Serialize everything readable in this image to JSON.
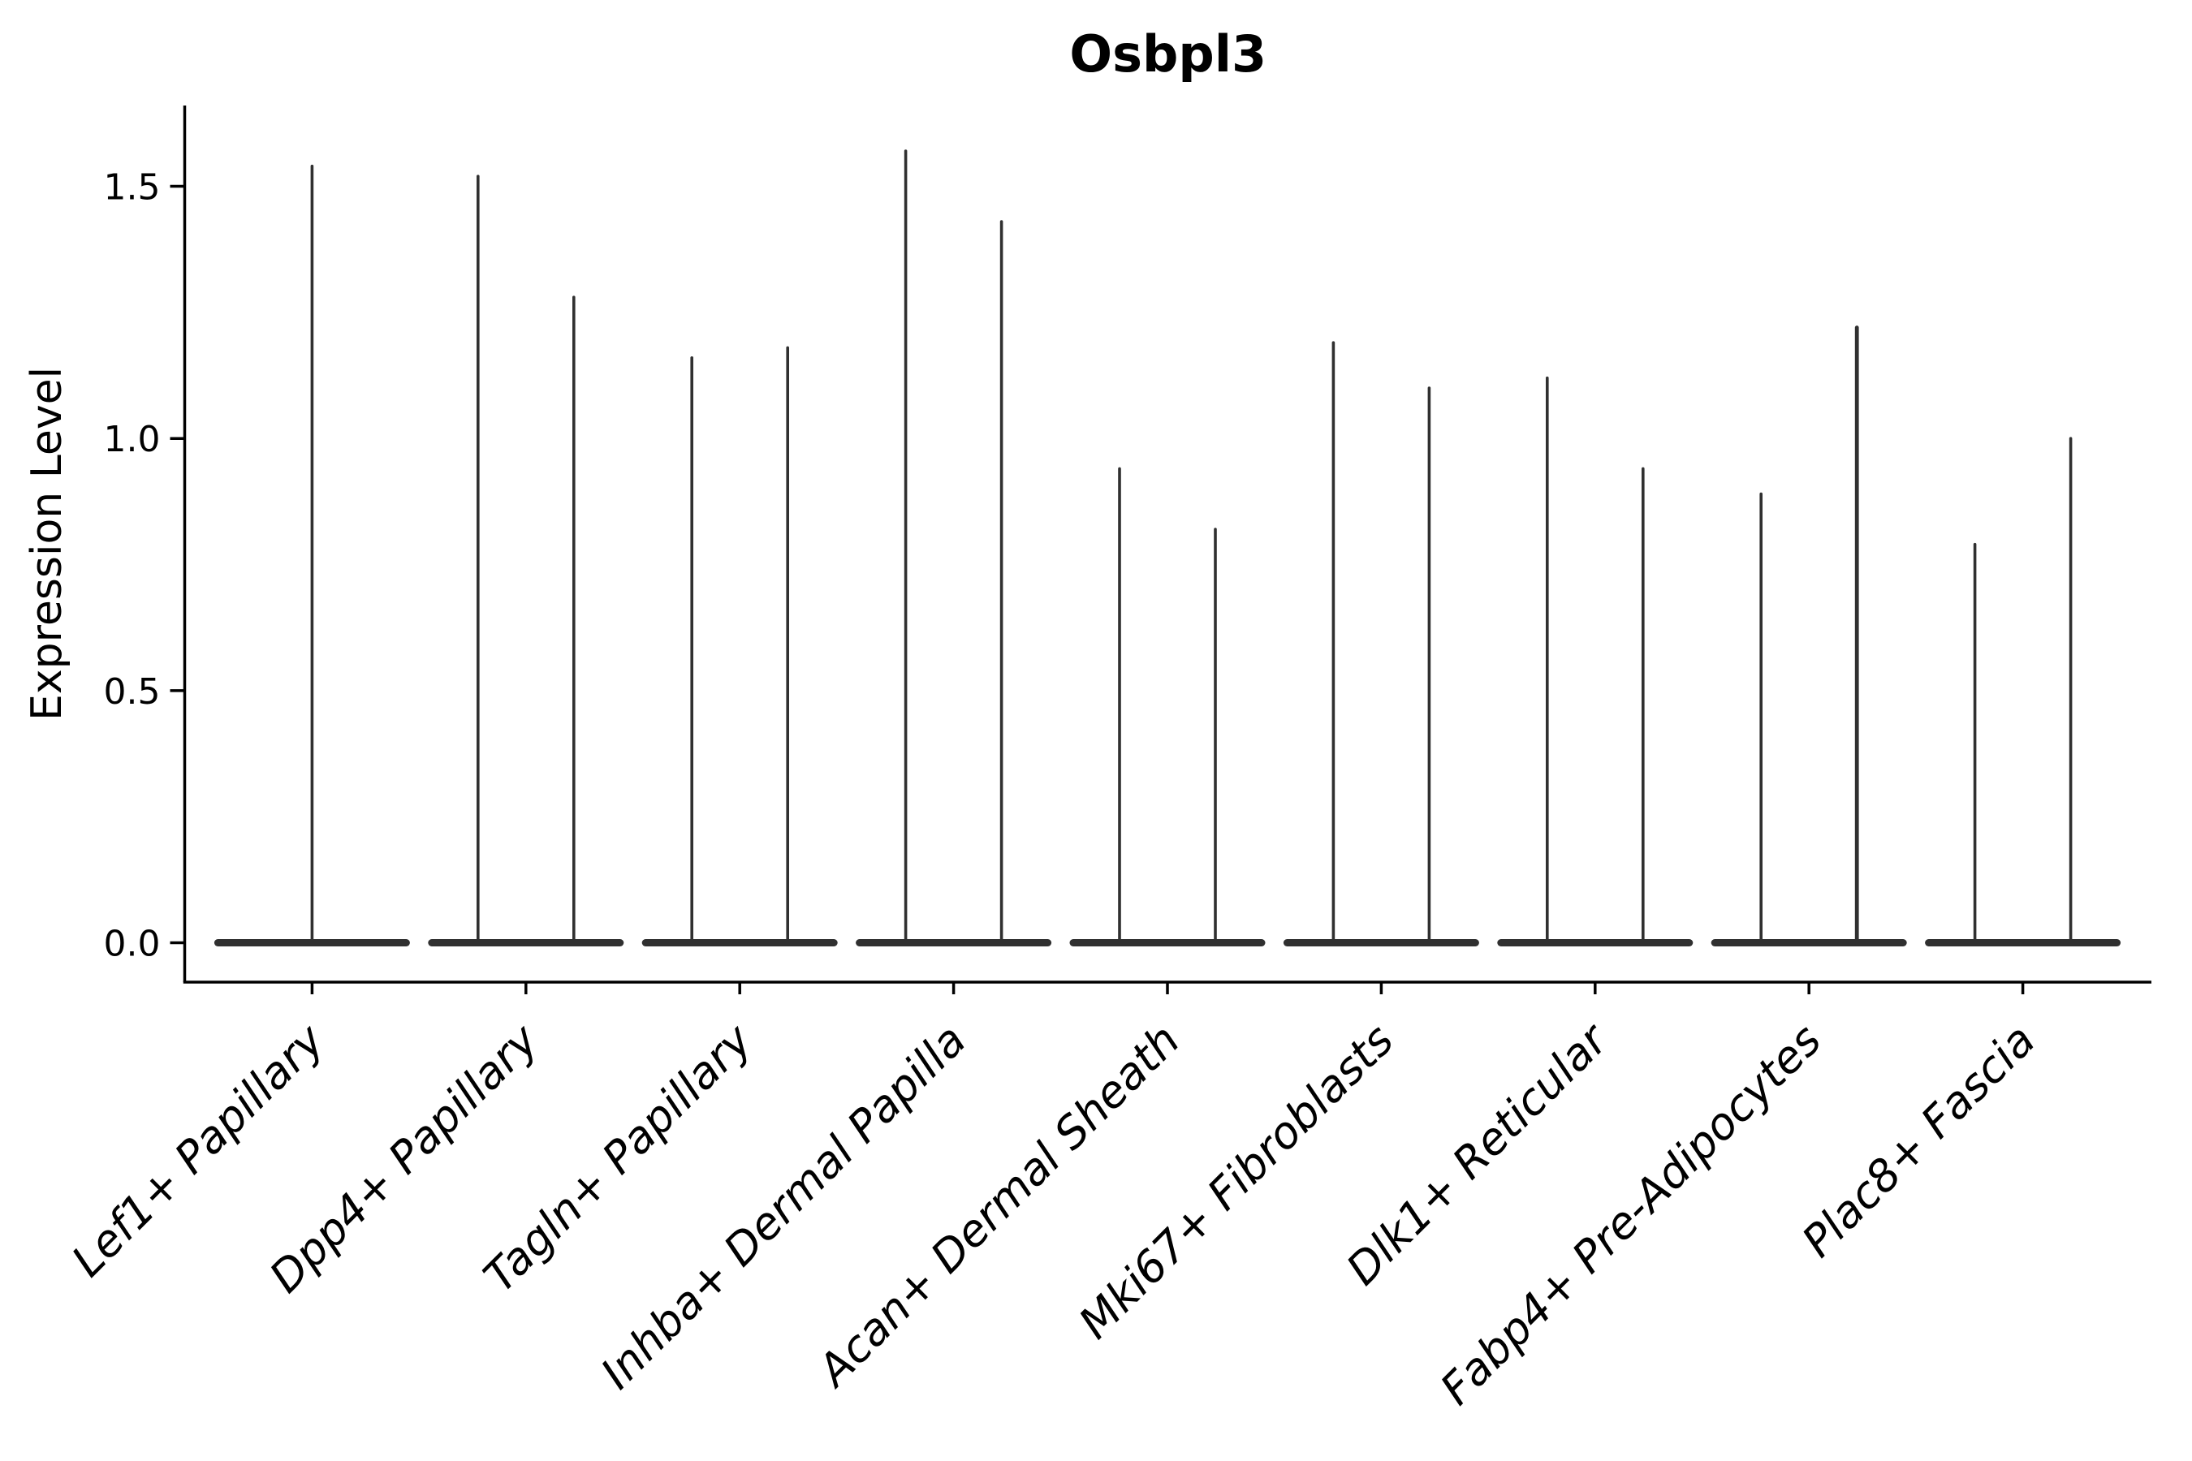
{
  "figure": {
    "title": "Osbpl3",
    "ylabel": "Expression Level"
  },
  "chart_data": {
    "type": "violin",
    "title": "Osbpl3",
    "xlabel": "",
    "ylabel": "Expression Level",
    "ytick_labels": [
      "0.0",
      "0.5",
      "1.0",
      "1.5"
    ],
    "ytick_values": [
      0.0,
      0.5,
      1.0,
      1.5
    ],
    "ylim": [
      -0.08,
      1.66
    ],
    "grid": false,
    "legend": "none",
    "violin_color": "#303030",
    "description": "Violin plot of Osbpl3 expression per fibroblast subtype; each violin is collapsed at 0 (flat wide base) with one or two thin density spikes reaching the listed maximum expression values.",
    "categories": [
      {
        "label": "Lef1+ Papillary",
        "spike_maxima": [
          1.54
        ]
      },
      {
        "label": "Dpp4+ Papillary",
        "spike_maxima": [
          1.52,
          1.28
        ]
      },
      {
        "label": "Tagln+ Papillary",
        "spike_maxima": [
          1.16,
          1.18
        ]
      },
      {
        "label": "Inhba+ Dermal Papilla",
        "spike_maxima": [
          1.57,
          1.43
        ]
      },
      {
        "label": "Acan+ Dermal Sheath",
        "spike_maxima": [
          0.94,
          0.82
        ]
      },
      {
        "label": "Mki67+ Fibroblasts",
        "spike_maxima": [
          1.19,
          1.1
        ]
      },
      {
        "label": "Dlk1+ Reticular",
        "spike_maxima": [
          1.12,
          0.94
        ]
      },
      {
        "label": "Fabp4+ Pre-Adipocytes",
        "spike_maxima": [
          0.89,
          1.22
        ]
      },
      {
        "label": "Plac8+ Fascia",
        "spike_maxima": [
          0.79,
          1.0
        ]
      }
    ]
  },
  "colors": {
    "background": "#ffffff",
    "axis": "#000000",
    "violin": "#303030",
    "text": "#000000"
  }
}
